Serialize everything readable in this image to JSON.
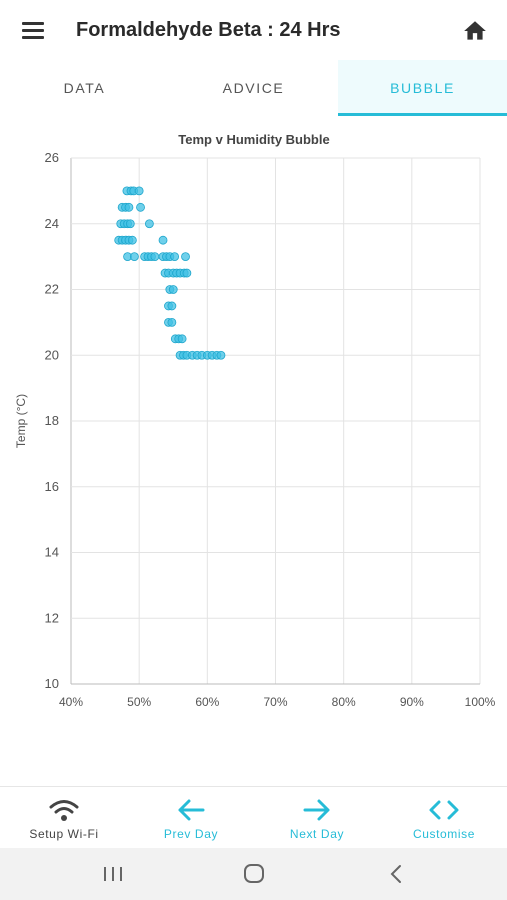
{
  "app": {
    "title": "Formaldehyde Beta : 24 Hrs",
    "icons": {
      "menu": "menu-icon",
      "home": "home-icon"
    }
  },
  "tabs": [
    {
      "label": "DATA",
      "active": false
    },
    {
      "label": "ADVICE",
      "active": false
    },
    {
      "label": "BUBBLE",
      "active": true
    }
  ],
  "colors": {
    "accent": "#26bcd7",
    "bubble": "#3fc0e4",
    "text": "#2a2a2a",
    "muted": "#555555"
  },
  "chart_data": {
    "type": "scatter",
    "title": "Temp v Humidity Bubble",
    "xlabel": "",
    "ylabel": "Temp (°C)",
    "xlim": [
      40,
      100
    ],
    "ylim": [
      10,
      26
    ],
    "x_ticks": [
      "40%",
      "50%",
      "60%",
      "70%",
      "80%",
      "90%",
      "100%"
    ],
    "y_ticks": [
      "10",
      "12",
      "14",
      "16",
      "18",
      "20",
      "22",
      "24",
      "26"
    ],
    "grid": true,
    "points": [
      {
        "x": 48.2,
        "y": 25
      },
      {
        "x": 48.8,
        "y": 25
      },
      {
        "x": 49.2,
        "y": 25
      },
      {
        "x": 50,
        "y": 25
      },
      {
        "x": 47.5,
        "y": 24.5
      },
      {
        "x": 48,
        "y": 24.5
      },
      {
        "x": 48.5,
        "y": 24.5
      },
      {
        "x": 50.2,
        "y": 24.5
      },
      {
        "x": 47.3,
        "y": 24
      },
      {
        "x": 47.8,
        "y": 24
      },
      {
        "x": 48.3,
        "y": 24
      },
      {
        "x": 48.7,
        "y": 24
      },
      {
        "x": 51.5,
        "y": 24
      },
      {
        "x": 47,
        "y": 23.5
      },
      {
        "x": 47.5,
        "y": 23.5
      },
      {
        "x": 48,
        "y": 23.5
      },
      {
        "x": 48.5,
        "y": 23.5
      },
      {
        "x": 49,
        "y": 23.5
      },
      {
        "x": 53.5,
        "y": 23.5
      },
      {
        "x": 48.3,
        "y": 23
      },
      {
        "x": 49.3,
        "y": 23
      },
      {
        "x": 50.8,
        "y": 23
      },
      {
        "x": 51.3,
        "y": 23
      },
      {
        "x": 51.8,
        "y": 23
      },
      {
        "x": 52.3,
        "y": 23
      },
      {
        "x": 53.5,
        "y": 23
      },
      {
        "x": 54,
        "y": 23
      },
      {
        "x": 54.5,
        "y": 23
      },
      {
        "x": 55.2,
        "y": 23
      },
      {
        "x": 56.8,
        "y": 23
      },
      {
        "x": 53.8,
        "y": 22.5
      },
      {
        "x": 54.3,
        "y": 22.5
      },
      {
        "x": 55,
        "y": 22.5
      },
      {
        "x": 55.5,
        "y": 22.5
      },
      {
        "x": 56,
        "y": 22.5
      },
      {
        "x": 56.6,
        "y": 22.5
      },
      {
        "x": 57,
        "y": 22.5
      },
      {
        "x": 54.5,
        "y": 22
      },
      {
        "x": 55,
        "y": 22
      },
      {
        "x": 54.3,
        "y": 21.5
      },
      {
        "x": 54.8,
        "y": 21.5
      },
      {
        "x": 54.3,
        "y": 21
      },
      {
        "x": 54.8,
        "y": 21
      },
      {
        "x": 55.3,
        "y": 20.5
      },
      {
        "x": 55.8,
        "y": 20.5
      },
      {
        "x": 56.3,
        "y": 20.5
      },
      {
        "x": 56,
        "y": 20
      },
      {
        "x": 56.5,
        "y": 20
      },
      {
        "x": 57,
        "y": 20
      },
      {
        "x": 57.8,
        "y": 20
      },
      {
        "x": 58.5,
        "y": 20
      },
      {
        "x": 59.2,
        "y": 20
      },
      {
        "x": 60,
        "y": 20
      },
      {
        "x": 60.7,
        "y": 20
      },
      {
        "x": 61.4,
        "y": 20
      },
      {
        "x": 62,
        "y": 20
      }
    ]
  },
  "bottom_nav": [
    {
      "label": "Setup Wi-Fi",
      "icon": "wifi-icon",
      "color": "#444444"
    },
    {
      "label": "Prev Day",
      "icon": "arrow-left-icon",
      "color": "#26bcd7"
    },
    {
      "label": "Next Day",
      "icon": "arrow-right-icon",
      "color": "#26bcd7"
    },
    {
      "label": "Customise",
      "icon": "code-brackets-icon",
      "color": "#26bcd7"
    }
  ],
  "system_bar": {
    "icons": [
      "recent-apps-icon",
      "home-circle-icon",
      "back-icon"
    ]
  }
}
